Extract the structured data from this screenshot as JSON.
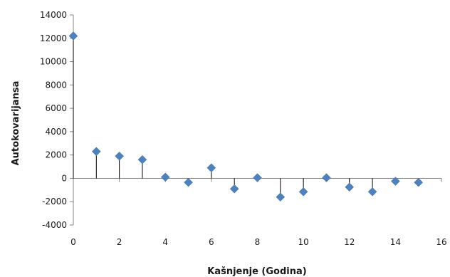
{
  "chart_data": {
    "type": "scatter",
    "title": "",
    "xlabel": "Kašnjenje (Godina)",
    "ylabel": "Autokovarijansa",
    "xlim": [
      0,
      16
    ],
    "ylim": [
      -4000,
      14000
    ],
    "xticks": [
      0,
      2,
      4,
      6,
      8,
      10,
      12,
      14,
      16
    ],
    "yticks": [
      -4000,
      -2000,
      0,
      2000,
      4000,
      6000,
      8000,
      10000,
      12000,
      14000
    ],
    "xtick_labels": [
      "0",
      "2",
      "4",
      "6",
      "8",
      "10",
      "12",
      "14",
      "16"
    ],
    "ytick_labels": [
      "-4000",
      "-2000",
      "0",
      "2000",
      "4000",
      "6000",
      "8000",
      "10000",
      "12000",
      "14000"
    ],
    "grid": false,
    "legend": "none",
    "marker": "diamond",
    "stems": true,
    "colors": {
      "marker": "#4f81bd",
      "stem": "#000000",
      "axis": "#868686"
    },
    "x": [
      0,
      1,
      2,
      3,
      4,
      5,
      6,
      7,
      8,
      9,
      10,
      11,
      12,
      13,
      14,
      15
    ],
    "y": [
      12200,
      2300,
      1900,
      1600,
      100,
      -350,
      900,
      -900,
      50,
      -1600,
      -1150,
      50,
      -750,
      -1150,
      -250,
      -350
    ]
  }
}
